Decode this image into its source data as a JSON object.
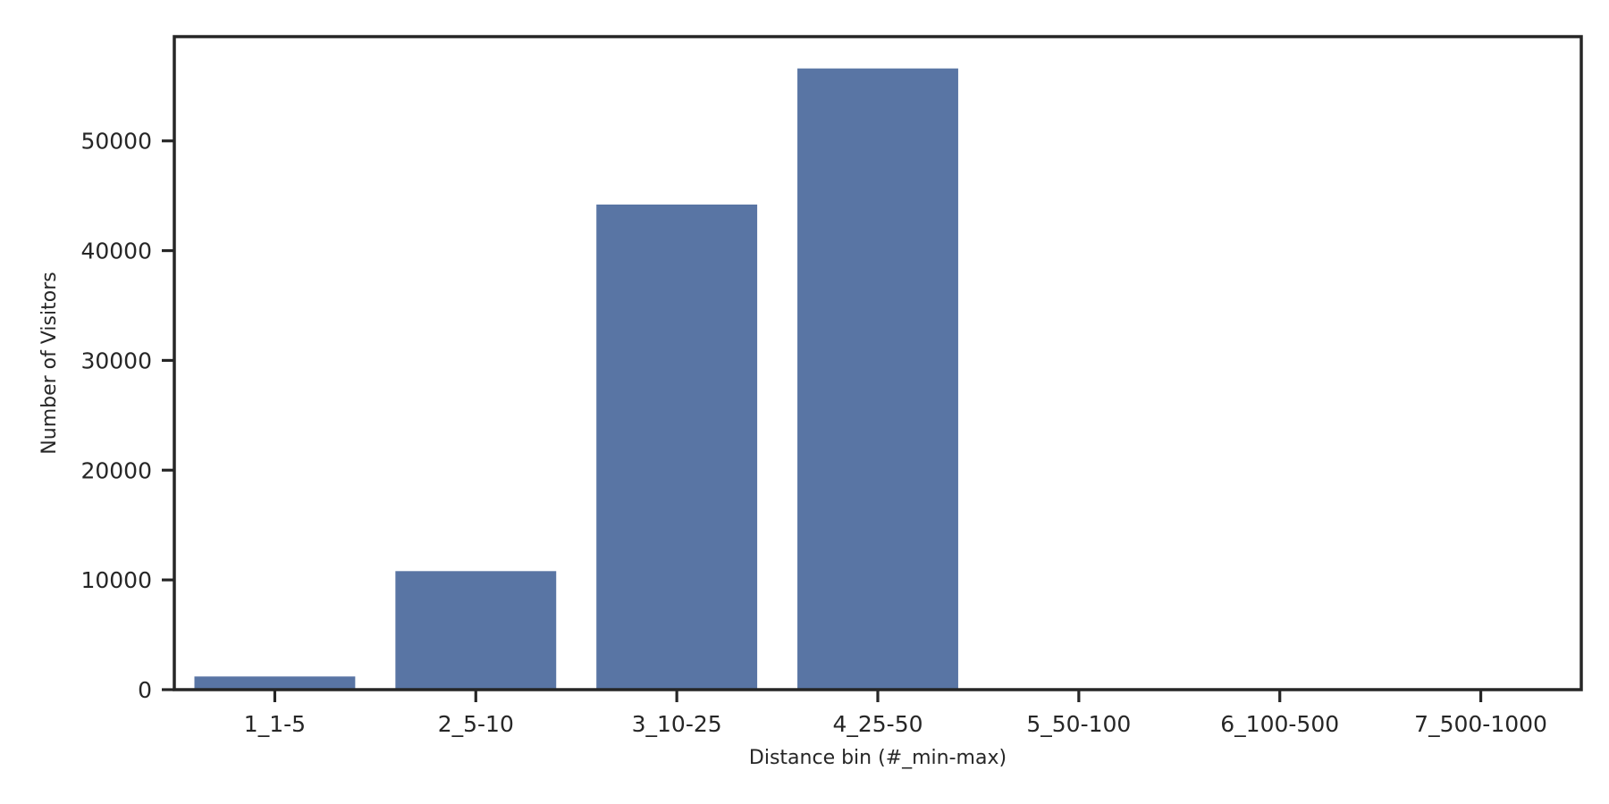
{
  "chart_data": {
    "type": "bar",
    "title": "",
    "xlabel": "Distance bin (#_min-max)",
    "ylabel": "Number of Visitors",
    "categories": [
      "1_1-5",
      "2_5-10",
      "3_10-25",
      "4_25-50",
      "5_50-100",
      "6_100-500",
      "7_500-1000"
    ],
    "values": [
      1200,
      10800,
      44200,
      56600,
      0,
      0,
      0
    ],
    "ylim": [
      0,
      59500
    ],
    "yticks": [
      0,
      10000,
      20000,
      30000,
      40000,
      50000
    ],
    "ytick_labels": [
      "0",
      "10000",
      "20000",
      "30000",
      "40000",
      "50000"
    ],
    "grid": false,
    "legend": "none",
    "bar_color": "#5975a4",
    "axis_color": "#262626"
  }
}
